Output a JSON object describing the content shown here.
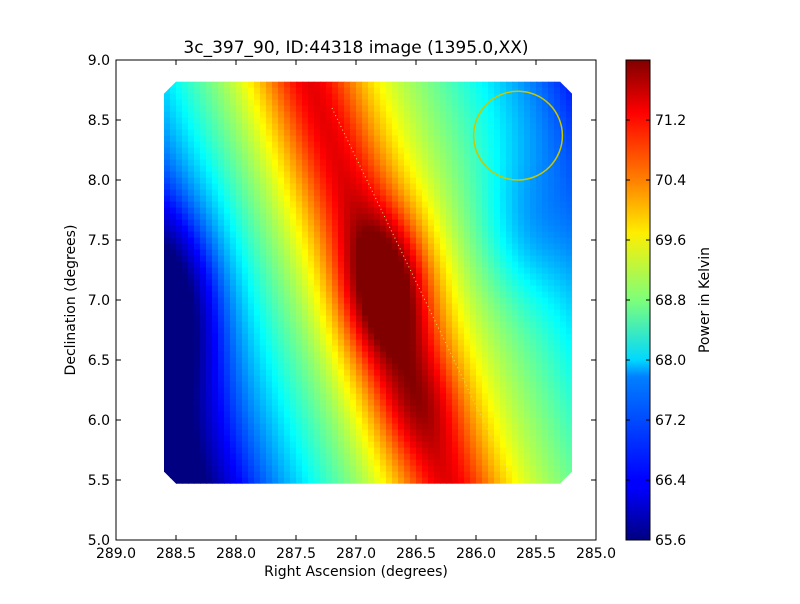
{
  "chart_data": {
    "type": "heatmap",
    "title": "3c_397_90, ID:44318 image (1395.0,XX)",
    "xlabel": "Right Ascension (degrees)",
    "ylabel": "Declination (degrees)",
    "colorbar_label": "Power in Kelvin",
    "xlim": [
      289.0,
      285.0
    ],
    "ylim": [
      5.0,
      9.0
    ],
    "x_ticks": [
      289.0,
      288.5,
      288.0,
      287.5,
      287.0,
      286.5,
      286.0,
      285.5,
      285.0
    ],
    "x_tick_labels": [
      "289.0",
      "288.5",
      "288.0",
      "287.5",
      "287.0",
      "286.5",
      "286.0",
      "285.5",
      "285.0"
    ],
    "y_ticks": [
      5.0,
      5.5,
      6.0,
      6.5,
      7.0,
      7.5,
      8.0,
      8.5,
      9.0
    ],
    "y_tick_labels": [
      "5.0",
      "5.5",
      "6.0",
      "6.5",
      "7.0",
      "7.5",
      "8.0",
      "8.5",
      "9.0"
    ],
    "colorbar_range": [
      65.6,
      72.0
    ],
    "colorbar_ticks": [
      65.6,
      66.4,
      67.2,
      68.0,
      68.8,
      69.6,
      70.4,
      71.2
    ],
    "colorbar_tick_labels": [
      "65.6",
      "66.4",
      "67.2",
      "68.0",
      "68.8",
      "69.6",
      "70.4",
      "71.2"
    ],
    "colormap": "jet",
    "image_extent": {
      "ra": [
        288.6,
        285.2
      ],
      "dec": [
        5.47,
        8.82
      ]
    },
    "grid": false,
    "features": {
      "peak": {
        "ra": 286.75,
        "dec": 7.1,
        "value": 71.9
      },
      "minimum": {
        "ra": 288.5,
        "dec": 7.0,
        "value": 65.6
      },
      "beam_circle": {
        "ra": 285.65,
        "dec": 8.37,
        "radius_deg": 0.37,
        "color": "#c8c800"
      },
      "dotted_line": {
        "from": {
          "ra": 287.2,
          "dec": 8.6
        },
        "to": {
          "ra": 285.7,
          "dec": 5.5
        },
        "color": "#e8e060"
      }
    }
  }
}
